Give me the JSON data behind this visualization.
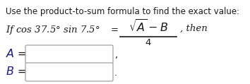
{
  "title_line": "Use the product-to-sum formula to find the exact value:",
  "background_color": "#ffffff",
  "text_color": "#1a1a8c",
  "text_color_dark": "#1a1a1a",
  "box_edge_color": "#aaaaaa",
  "box_face_color": "#ffffff",
  "font_size_title": 8.5,
  "font_size_body": 9.5,
  "fig_width": 3.54,
  "fig_height": 1.19,
  "dpi": 100
}
